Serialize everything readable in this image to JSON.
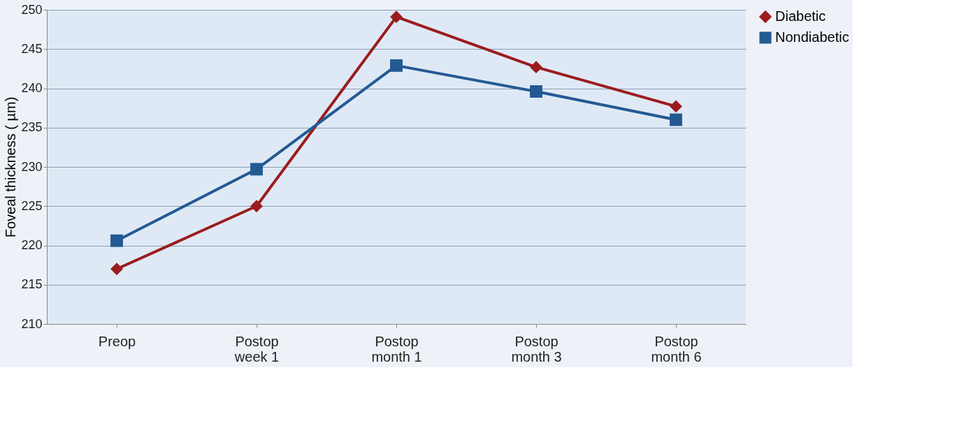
{
  "chart_data": {
    "type": "line",
    "ylabel": "Foveal thickness  ( µm)",
    "categories": [
      "Preop",
      "Postop\nweek 1",
      "Postop\nmonth 1",
      "Postop\nmonth 3",
      "Postop\nmonth 6"
    ],
    "series": [
      {
        "name": "Diabetic",
        "color": "#9b1c1f",
        "marker": "diamond",
        "values": [
          217,
          225,
          249.1,
          242.7,
          237.7
        ]
      },
      {
        "name": "Nondiabetic",
        "color": "#245a93",
        "marker": "square",
        "values": [
          220.6,
          229.7,
          242.9,
          239.6,
          236.0
        ]
      }
    ],
    "ylim": [
      210,
      250
    ],
    "yticks": [
      210,
      215,
      220,
      225,
      230,
      235,
      240,
      245,
      250
    ],
    "grid": "y",
    "legend": "right",
    "line_style": "solid"
  }
}
